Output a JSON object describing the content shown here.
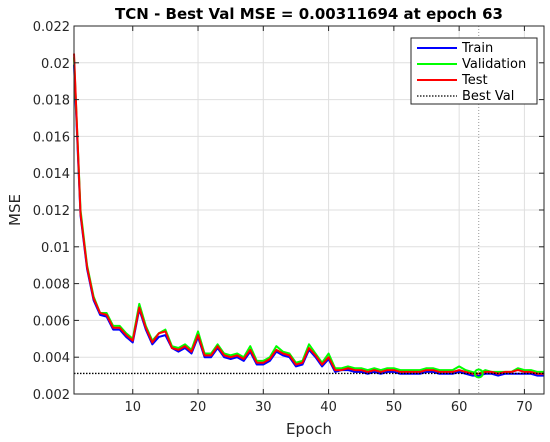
{
  "chart_data": {
    "type": "line",
    "title": "TCN - Best Val MSE = 0.00311694 at epoch 63",
    "xlabel": "Epoch",
    "ylabel": "MSE",
    "xlim": [
      1,
      73
    ],
    "ylim": [
      0.002,
      0.022
    ],
    "xticks": [
      10,
      20,
      30,
      40,
      50,
      60,
      70
    ],
    "yticks": [
      0.002,
      0.004,
      0.006,
      0.008,
      0.01,
      0.012,
      0.014,
      0.016,
      0.018,
      0.02,
      0.022
    ],
    "ytick_labels": [
      "0.002",
      "0.004",
      "0.006",
      "0.008",
      "0.01",
      "0.012",
      "0.014",
      "0.016",
      "0.018",
      "0.02",
      "0.022"
    ],
    "xtick_labels": [
      "10",
      "20",
      "30",
      "40",
      "50",
      "60",
      "70"
    ],
    "grid": true,
    "legend_position": "top-right",
    "x": [
      1,
      2,
      3,
      4,
      5,
      6,
      7,
      8,
      9,
      10,
      11,
      12,
      13,
      14,
      15,
      16,
      17,
      18,
      19,
      20,
      21,
      22,
      23,
      24,
      25,
      26,
      27,
      28,
      29,
      30,
      31,
      32,
      33,
      34,
      35,
      36,
      37,
      38,
      39,
      40,
      41,
      42,
      43,
      44,
      45,
      46,
      47,
      48,
      49,
      50,
      51,
      52,
      53,
      54,
      55,
      56,
      57,
      58,
      59,
      60,
      61,
      62,
      63,
      64,
      65,
      66,
      67,
      68,
      69,
      70,
      71,
      72,
      73
    ],
    "series": [
      {
        "name": "Train",
        "color": "#0000ff",
        "values": [
          0.0199,
          0.0117,
          0.0088,
          0.0071,
          0.0063,
          0.0062,
          0.0055,
          0.0055,
          0.0051,
          0.0048,
          0.0066,
          0.0055,
          0.0047,
          0.0051,
          0.0052,
          0.0045,
          0.0043,
          0.0045,
          0.0042,
          0.0051,
          0.004,
          0.004,
          0.0045,
          0.004,
          0.0039,
          0.004,
          0.0038,
          0.0043,
          0.0036,
          0.0036,
          0.0038,
          0.0043,
          0.0041,
          0.004,
          0.0035,
          0.0036,
          0.0044,
          0.004,
          0.0035,
          0.0039,
          0.0032,
          0.0033,
          0.0033,
          0.0032,
          0.0032,
          0.0031,
          0.0032,
          0.0031,
          0.0032,
          0.0032,
          0.0031,
          0.0031,
          0.0031,
          0.0031,
          0.0032,
          0.0032,
          0.0031,
          0.0031,
          0.0031,
          0.0032,
          0.0031,
          0.003,
          0.003,
          0.0031,
          0.0031,
          0.003,
          0.0031,
          0.0031,
          0.0031,
          0.0031,
          0.0031,
          0.003,
          0.003
        ]
      },
      {
        "name": "Validation",
        "color": "#00ff00",
        "values": [
          0.0203,
          0.012,
          0.009,
          0.0073,
          0.0064,
          0.0064,
          0.0057,
          0.0057,
          0.0053,
          0.005,
          0.0069,
          0.0057,
          0.0049,
          0.0053,
          0.0055,
          0.0046,
          0.0045,
          0.0047,
          0.0044,
          0.0054,
          0.0042,
          0.0042,
          0.0047,
          0.0042,
          0.0041,
          0.0042,
          0.004,
          0.0046,
          0.0038,
          0.0038,
          0.004,
          0.0046,
          0.0043,
          0.0042,
          0.0037,
          0.0038,
          0.0047,
          0.0042,
          0.0037,
          0.0042,
          0.0034,
          0.0034,
          0.0035,
          0.0034,
          0.0034,
          0.0033,
          0.0034,
          0.0033,
          0.0034,
          0.0034,
          0.0033,
          0.0033,
          0.0033,
          0.0033,
          0.0034,
          0.0034,
          0.0033,
          0.0033,
          0.0033,
          0.0035,
          0.0033,
          0.0032,
          0.0031,
          0.0033,
          0.0032,
          0.0032,
          0.0032,
          0.0032,
          0.0034,
          0.0033,
          0.0033,
          0.0032,
          0.0032
        ]
      },
      {
        "name": "Test",
        "color": "#ff0000",
        "values": [
          0.0205,
          0.0118,
          0.0089,
          0.0072,
          0.0064,
          0.0063,
          0.0056,
          0.0056,
          0.0052,
          0.0049,
          0.0067,
          0.0056,
          0.0048,
          0.0053,
          0.0054,
          0.0045,
          0.0044,
          0.0046,
          0.0043,
          0.0052,
          0.0041,
          0.0041,
          0.0046,
          0.0041,
          0.004,
          0.0041,
          0.0039,
          0.0044,
          0.0037,
          0.0037,
          0.0039,
          0.0044,
          0.0042,
          0.0041,
          0.0036,
          0.0037,
          0.0045,
          0.0041,
          0.0036,
          0.004,
          0.0033,
          0.0033,
          0.0034,
          0.0033,
          0.0033,
          0.0032,
          0.0033,
          0.0032,
          0.0033,
          0.0033,
          0.0032,
          0.0032,
          0.0032,
          0.0032,
          0.0033,
          0.0033,
          0.0032,
          0.0032,
          0.0032,
          0.0033,
          0.0032,
          0.0031,
          0.0031,
          0.0032,
          0.0032,
          0.0031,
          0.0032,
          0.0032,
          0.0033,
          0.0032,
          0.0032,
          0.0031,
          0.0031
        ]
      }
    ],
    "best_val": {
      "name": "Best Val",
      "value": 0.00311694,
      "epoch": 63,
      "color": "#000000"
    }
  }
}
